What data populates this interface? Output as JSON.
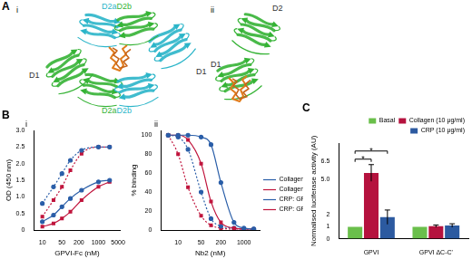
{
  "panel_a": {
    "label": "A",
    "views": [
      {
        "label": "i",
        "domains": [
          {
            "text": "D2a",
            "color": "#2bb5c9"
          },
          {
            "text": "D2b",
            "color": "#35b335"
          },
          {
            "text": "D1",
            "color": "#333333"
          },
          {
            "text": "D1",
            "color": "#333333"
          },
          {
            "text": "D2a",
            "color": "#35b335"
          },
          {
            "text": "D2b",
            "color": "#2bb5c9"
          }
        ]
      },
      {
        "label": "ii",
        "domains": [
          {
            "text": "D2",
            "color": "#333333"
          },
          {
            "text": "D1",
            "color": "#333333"
          }
        ]
      }
    ]
  },
  "chart_data": [
    {
      "panel": "B",
      "subpanel": "i",
      "type": "line",
      "x_label": "GPVI-Fc (nM)",
      "y_label": "OD (450 nm)",
      "x": [
        10,
        25,
        50,
        100,
        250,
        1000,
        2500
      ],
      "series": [
        {
          "name": "Collagen: GPVI",
          "color": "#2a5ea8",
          "marker": "circle",
          "line_style": "solid",
          "values": [
            0.25,
            0.45,
            0.7,
            0.95,
            1.2,
            1.45,
            1.5
          ]
        },
        {
          "name": "Collagen: GPVI ΔC-C'",
          "color": "#c0143c",
          "marker": "square",
          "line_style": "solid",
          "values": [
            0.1,
            0.2,
            0.35,
            0.55,
            0.9,
            1.3,
            1.45
          ]
        },
        {
          "name": "CRP: GPVI",
          "color": "#2a5ea8",
          "marker": "circle",
          "line_style": "dotted",
          "values": [
            0.8,
            1.3,
            1.7,
            2.1,
            2.4,
            2.5,
            2.5
          ]
        },
        {
          "name": "CRP: GPVI ΔC-C'",
          "color": "#c0143c",
          "marker": "square",
          "line_style": "dotted",
          "values": [
            0.4,
            0.9,
            1.3,
            1.8,
            2.3,
            2.5,
            2.5
          ]
        }
      ],
      "log": "x",
      "xlim": [
        5,
        6000
      ],
      "xticks": [
        10,
        50,
        200,
        1000,
        5000
      ],
      "ylim": [
        0,
        3
      ],
      "yticks": [
        0,
        0.5,
        {
          "value": 1,
          "label": "1.0"
        },
        1.5,
        {
          "value": 2,
          "label": "2.0"
        },
        2.5,
        {
          "value": 3,
          "label": "3.0"
        }
      ],
      "grid": false
    },
    {
      "subpanel": "ii",
      "type": "line",
      "x_label": "Nb2 (nM)",
      "y_label": "% binding",
      "x": [
        5,
        10,
        20,
        50,
        100,
        200,
        500,
        1000,
        2000
      ],
      "series": [
        {
          "name": "Collagen: GPVI",
          "color": "#2a5ea8",
          "marker": "circle",
          "line_style": "solid",
          "values": [
            100,
            100,
            100,
            98,
            90,
            50,
            8,
            2,
            1
          ]
        },
        {
          "name": "Collagen: GPVI ΔC-C'",
          "color": "#c0143c",
          "marker": "square",
          "line_style": "solid",
          "values": [
            100,
            100,
            95,
            70,
            30,
            8,
            2,
            1,
            1
          ]
        },
        {
          "name": "CRP: GPVI",
          "color": "#2a5ea8",
          "marker": "circle",
          "line_style": "dotted",
          "values": [
            100,
            98,
            85,
            40,
            12,
            4,
            2,
            1,
            1
          ]
        },
        {
          "name": "CRP: GPVI ΔC-C'",
          "color": "#c0143c",
          "marker": "square",
          "line_style": "dotted",
          "values": [
            100,
            80,
            45,
            15,
            5,
            2,
            1,
            1,
            1
          ]
        }
      ],
      "log": "x",
      "xlim": [
        3,
        3000
      ],
      "xticks": [
        10,
        50,
        200,
        1000
      ],
      "ylim": [
        0,
        105
      ],
      "yticks": [
        0,
        20,
        40,
        60,
        80,
        100
      ],
      "grid": false,
      "legend": "right"
    },
    {
      "panel": "C",
      "type": "bar",
      "y_label": "Normalised luciferase activity (AU)",
      "categories": [
        "GPVI",
        "GPVI ΔC-C'"
      ],
      "series": [
        {
          "name": "Basal",
          "color": "#6abf4b",
          "values": [
            1,
            1
          ],
          "errors": [
            0,
            0
          ]
        },
        {
          "name": "Collagen (10 μg/ml)",
          "color": "#b5123e",
          "values": [
            5.5,
            1.05
          ],
          "errors": [
            0.7,
            0.1
          ]
        },
        {
          "name": "CRP (10 μg/ml)",
          "color": "#2c5aa0",
          "values": [
            1.8,
            1.1
          ],
          "errors": [
            0.6,
            0.15
          ]
        }
      ],
      "significance": [
        {
          "category": "GPVI",
          "series": [
            "Basal",
            "Collagen (10 μg/ml)"
          ],
          "label": "*"
        },
        {
          "category": "GPVI",
          "series": [
            "Basal",
            "CRP (10 μg/ml)"
          ],
          "label": "*"
        }
      ],
      "ylim": [
        0,
        8
      ],
      "yticks": [
        0,
        1,
        2,
        {
          "value": 5,
          "label": "5.0"
        },
        6.5
      ],
      "grid": false,
      "legend": "top"
    }
  ]
}
